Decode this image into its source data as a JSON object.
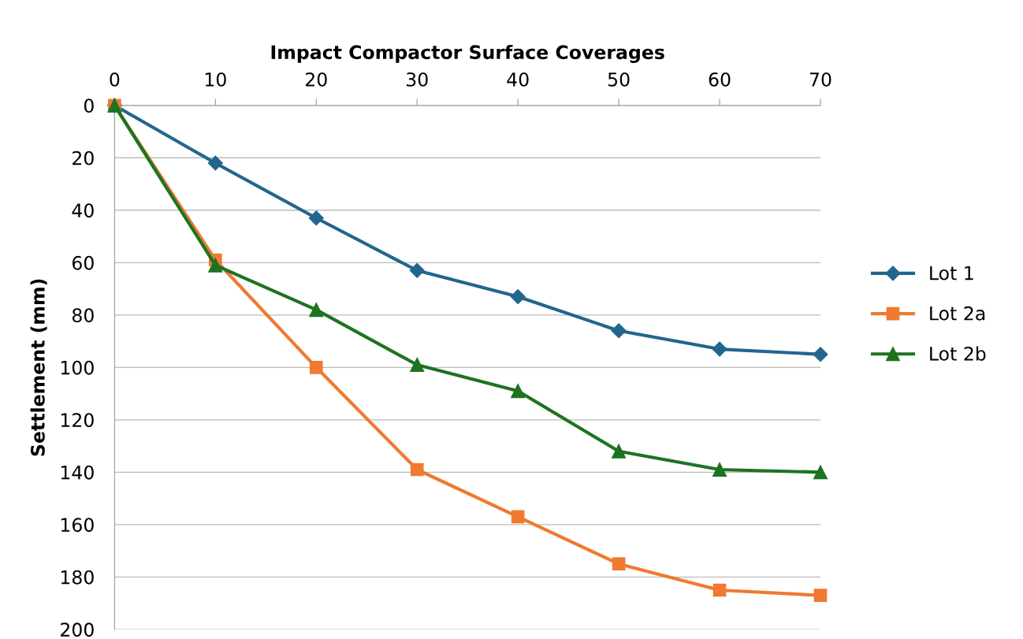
{
  "chart_data": {
    "type": "line",
    "xlabel": "Impact Compactor Surface Coverages",
    "ylabel": "Settlement (mm)",
    "x": [
      0,
      10,
      20,
      30,
      40,
      50,
      60,
      70
    ],
    "series": [
      {
        "name": "Lot 1",
        "color": "#22668d",
        "marker": "diamond",
        "values": [
          0,
          22,
          43,
          63,
          73,
          86,
          93,
          95
        ]
      },
      {
        "name": "Lot 2a",
        "color": "#ef7a30",
        "marker": "square",
        "values": [
          0,
          59,
          100,
          139,
          157,
          175,
          185,
          187
        ]
      },
      {
        "name": "Lot 2b",
        "color": "#1d7321",
        "marker": "triangle",
        "values": [
          0,
          61,
          78,
          99,
          109,
          132,
          139,
          140
        ]
      }
    ],
    "xlim": [
      0,
      70
    ],
    "xticks": [
      0,
      10,
      20,
      30,
      40,
      50,
      60,
      70
    ],
    "ylim": [
      200,
      0
    ],
    "yticks": [
      0,
      20,
      40,
      60,
      80,
      100,
      120,
      140,
      160,
      180,
      200
    ],
    "grid": "y",
    "legend": "right",
    "line_style": "solid"
  }
}
